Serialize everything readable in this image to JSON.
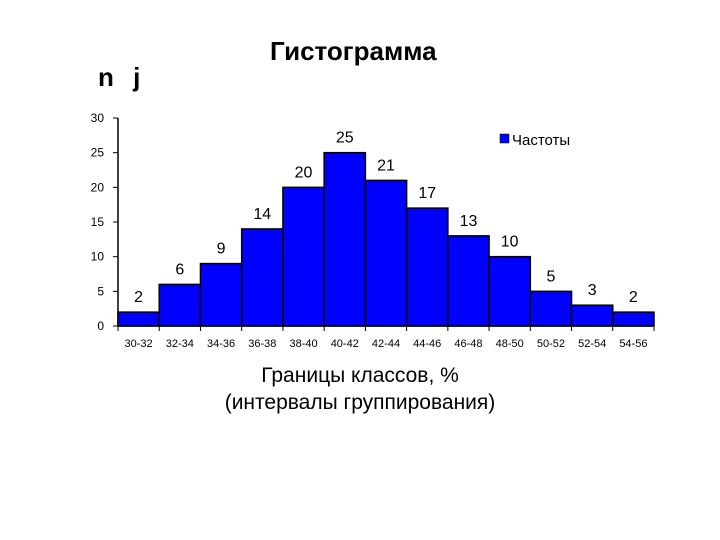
{
  "chart_data": {
    "type": "bar",
    "title": "Гистограмма",
    "ylabel": "n j",
    "xlabel_lines": [
      "Границы классов, %",
      "(интервалы группирования)"
    ],
    "categories": [
      "30-32",
      "32-34",
      "34-36",
      "36-38",
      "38-40",
      "40-42",
      "42-44",
      "44-46",
      "46-48",
      "48-50",
      "50-52",
      "52-54",
      "54-56"
    ],
    "series": [
      {
        "name": "Частоты",
        "values": [
          2,
          6,
          9,
          14,
          20,
          25,
          21,
          17,
          13,
          10,
          5,
          3,
          2
        ]
      }
    ],
    "yticks": [
      0,
      5,
      10,
      15,
      20,
      25,
      30
    ],
    "ylim": [
      0,
      30
    ],
    "grid": false,
    "legend_position": "top-right",
    "bar_color": "#0000ff",
    "bar_edge_color": "#000000"
  }
}
